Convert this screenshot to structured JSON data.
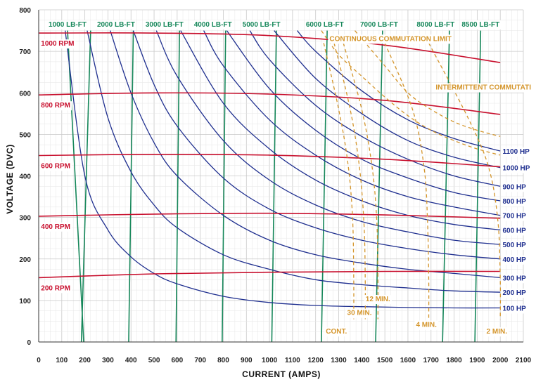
{
  "chart_data": {
    "type": "line",
    "xlabel": "CURRENT (AMPS)",
    "ylabel": "VOLTAGE (DVC)",
    "xlim": [
      0,
      2100
    ],
    "ylim": [
      0,
      800
    ],
    "xticks": [
      "0",
      "100",
      "200",
      "300",
      "400",
      "500",
      "600",
      "700",
      "800",
      "900",
      "1000",
      "1100",
      "1200",
      "1300",
      "1400",
      "1500",
      "1600",
      "1700",
      "1800",
      "1900",
      "2000",
      "2100"
    ],
    "yticks": [
      "0",
      "100",
      "200",
      "300",
      "400",
      "500",
      "600",
      "700",
      "800"
    ],
    "grid": true,
    "colors": {
      "rpm": "#c8102e",
      "hp": "#1f2f8f",
      "torque": "#16875a",
      "commutation": "#d4952b"
    },
    "rpm_series": [
      {
        "name": "200 RPM",
        "x": [
          0,
          500,
          1000,
          1500,
          2000
        ],
        "y": [
          155,
          164,
          168,
          170,
          170
        ]
      },
      {
        "name": "400 RPM",
        "x": [
          0,
          500,
          1000,
          1500,
          2000
        ],
        "y": [
          303,
          308,
          310,
          306,
          298
        ]
      },
      {
        "name": "600 RPM",
        "x": [
          0,
          500,
          1000,
          1500,
          2000
        ],
        "y": [
          449,
          452,
          450,
          440,
          422
        ]
      },
      {
        "name": "800 RPM",
        "x": [
          0,
          500,
          1000,
          1500,
          2000
        ],
        "y": [
          595,
          600,
          597,
          582,
          548
        ]
      },
      {
        "name": "1000 RPM",
        "x": [
          0,
          500,
          1000,
          1500,
          2000
        ],
        "y": [
          744,
          744,
          738,
          715,
          673
        ]
      }
    ],
    "hp_series": [
      {
        "name": "100 HP",
        "x": [
          115,
          200,
          300,
          400,
          500,
          600,
          800,
          1000,
          1200,
          1400,
          1600,
          1800,
          2000
        ],
        "y": [
          750,
          400,
          270,
          205,
          165,
          140,
          110,
          95,
          88,
          85,
          83,
          82,
          82
        ]
      },
      {
        "name": "200 HP",
        "x": [
          210,
          300,
          400,
          500,
          600,
          800,
          1000,
          1200,
          1400,
          1600,
          1800,
          2000
        ],
        "y": [
          750,
          540,
          410,
          330,
          275,
          210,
          175,
          150,
          138,
          130,
          123,
          120
        ]
      },
      {
        "name": "300 HP",
        "x": [
          310,
          400,
          500,
          600,
          800,
          1000,
          1200,
          1400,
          1600,
          1800,
          2000
        ],
        "y": [
          750,
          600,
          480,
          400,
          305,
          245,
          210,
          190,
          175,
          165,
          155
        ]
      },
      {
        "name": "400 HP",
        "x": [
          410,
          500,
          600,
          800,
          1000,
          1200,
          1400,
          1600,
          1800,
          2000
        ],
        "y": [
          750,
          620,
          520,
          395,
          320,
          275,
          245,
          225,
          210,
          200
        ]
      },
      {
        "name": "500 HP",
        "x": [
          510,
          600,
          800,
          1000,
          1200,
          1400,
          1600,
          1800,
          2000
        ],
        "y": [
          750,
          640,
          485,
          390,
          330,
          290,
          265,
          245,
          235
        ]
      },
      {
        "name": "600 HP",
        "x": [
          615,
          800,
          1000,
          1200,
          1400,
          1600,
          1800,
          2000
        ],
        "y": [
          750,
          575,
          465,
          390,
          340,
          305,
          283,
          270
        ]
      },
      {
        "name": "700 HP",
        "x": [
          715,
          800,
          1000,
          1200,
          1400,
          1600,
          1800,
          2000
        ],
        "y": [
          750,
          665,
          535,
          450,
          390,
          350,
          325,
          305
        ]
      },
      {
        "name": "800 HP",
        "x": [
          815,
          1000,
          1200,
          1400,
          1600,
          1800,
          2000
        ],
        "y": [
          750,
          610,
          510,
          440,
          395,
          360,
          340
        ]
      },
      {
        "name": "900 HP",
        "x": [
          915,
          1000,
          1200,
          1400,
          1600,
          1800,
          2000
        ],
        "y": [
          750,
          680,
          570,
          495,
          440,
          400,
          375
        ]
      },
      {
        "name": "1000 HP",
        "x": [
          1020,
          1200,
          1400,
          1600,
          1800,
          2000
        ],
        "y": [
          750,
          635,
          550,
          485,
          445,
          420
        ]
      },
      {
        "name": "1100 HP",
        "x": [
          1120,
          1200,
          1400,
          1600,
          1800,
          2000
        ],
        "y": [
          750,
          700,
          605,
          535,
          490,
          460
        ]
      }
    ],
    "torque_series": [
      {
        "name": "1000 LB-FT",
        "x": [
          125,
          195
        ],
        "y": [
          750,
          0
        ]
      },
      {
        "name": "2000 LB-FT",
        "x": [
          225,
          185
        ],
        "y": [
          750,
          0
        ]
      },
      {
        "name": "3000 LB-FT",
        "x": [
          410,
          390
        ],
        "y": [
          750,
          0
        ]
      },
      {
        "name": "4000 LB-FT",
        "x": [
          610,
          595
        ],
        "y": [
          750,
          0
        ]
      },
      {
        "name": "5000 LB-FT",
        "x": [
          810,
          795
        ],
        "y": [
          750,
          0
        ]
      },
      {
        "name": "6000 LB-FT",
        "x": [
          1030,
          1010
        ],
        "y": [
          750,
          0
        ]
      },
      {
        "name": "7000 LB-FT",
        "x": [
          1250,
          1225
        ],
        "y": [
          750,
          0
        ]
      },
      {
        "name": "8000 LB-FT",
        "x": [
          1490,
          1460
        ],
        "y": [
          750,
          0
        ]
      },
      {
        "name": "8500 LB-FT",
        "x": [
          1780,
          1750
        ],
        "y": [
          750,
          0
        ]
      },
      {
        "name": "",
        "x": [
          1915,
          1890
        ],
        "y": [
          750,
          0
        ]
      }
    ],
    "torque_labels": [
      {
        "text": "1000 LB-FT",
        "x": 125
      },
      {
        "text": "2000 LB-FT",
        "x": 335
      },
      {
        "text": "3000 LB-FT",
        "x": 545
      },
      {
        "text": "4000 LB-FT",
        "x": 755
      },
      {
        "text": "5000 LB-FT",
        "x": 965
      },
      {
        "text": "6000 LB-FT",
        "x": 1240
      },
      {
        "text": "7000 LB-FT",
        "x": 1475
      },
      {
        "text": "8000 LB-FT",
        "x": 1720
      },
      {
        "text": "8500 LB-FT",
        "x": 1915
      }
    ],
    "commutation_series": [
      {
        "name": "CONTINUOUS COMMUTATION LIMIT",
        "x": [
          1225,
          1300,
          1400,
          1500,
          1600,
          1700,
          1800,
          1900,
          2000
        ],
        "y": [
          750,
          692,
          640,
          590,
          545,
          510,
          485,
          465,
          450
        ]
      },
      {
        "name": "INTERMITTENT COMMUTATION LIMIT",
        "x": [
          1370,
          1500,
          1600,
          1700,
          1800,
          1900,
          2000
        ],
        "y": [
          750,
          665,
          600,
          560,
          530,
          510,
          495
        ]
      },
      {
        "name": "CONT.",
        "x": [
          1235,
          1300,
          1340,
          1360,
          1365,
          1365
        ],
        "y": [
          720,
          560,
          430,
          300,
          150,
          55
        ]
      },
      {
        "name": "30 MIN.",
        "x": [
          1280,
          1350,
          1390,
          1410,
          1415,
          1415
        ],
        "y": [
          720,
          560,
          420,
          280,
          140,
          55
        ]
      },
      {
        "name": "12 MIN.",
        "x": [
          1320,
          1400,
          1445,
          1465,
          1470,
          1470
        ],
        "y": [
          720,
          560,
          420,
          290,
          150,
          55
        ]
      },
      {
        "name": "4 MIN.",
        "x": [
          1500,
          1620,
          1670,
          1685,
          1690,
          1690
        ],
        "y": [
          720,
          560,
          420,
          290,
          150,
          55
        ]
      },
      {
        "name": "2 MIN.",
        "x": [
          1690,
          1860,
          1950,
          1990,
          2000,
          2000
        ],
        "y": [
          720,
          540,
          420,
          290,
          150,
          55
        ]
      }
    ],
    "annotations": [
      {
        "text": "CONTINUOUS COMMUTATION LIMIT"
      },
      {
        "text": "INTERMITTENT COMMUTATI"
      },
      {
        "text": "CONT."
      },
      {
        "text": "30 MIN."
      },
      {
        "text": "12 MIN."
      },
      {
        "text": "4 MIN."
      },
      {
        "text": "2 MIN."
      }
    ]
  }
}
